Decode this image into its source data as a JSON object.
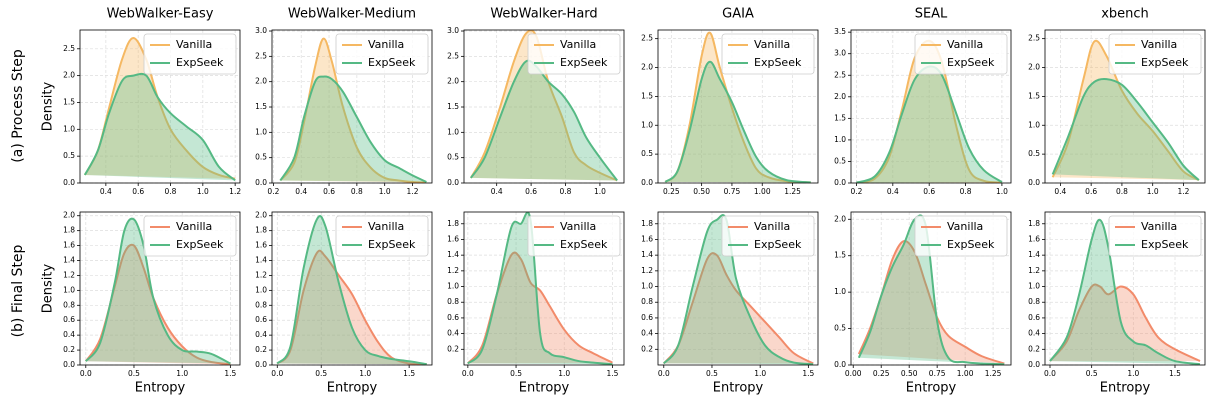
{
  "row_labels": [
    "(a) Process Step",
    "(b) Final Step"
  ],
  "chart_data": [
    {
      "type": "area",
      "title": "WebWalker-Easy",
      "ylabel": "Density",
      "x": [
        0.27,
        0.35,
        0.42,
        0.5,
        0.57,
        0.65,
        0.72,
        0.8,
        0.9,
        1.0,
        1.1,
        1.2
      ],
      "series": [
        {
          "name": "Vanilla",
          "color": "#f5b862",
          "values": [
            0.15,
            0.6,
            1.4,
            2.3,
            2.7,
            2.3,
            1.6,
            1.0,
            0.6,
            0.3,
            0.15,
            0.08
          ]
        },
        {
          "name": "ExpSeek",
          "color": "#55b984",
          "values": [
            0.15,
            0.6,
            1.3,
            1.9,
            2.0,
            2.0,
            1.6,
            1.3,
            1.05,
            0.8,
            0.3,
            0.05
          ]
        }
      ],
      "xlim": [
        0.24,
        1.23
      ],
      "ylim": [
        0,
        2.85
      ],
      "xticks": [
        0.4,
        0.6,
        0.8,
        {
          "value": 1.0,
          "label": "1.0"
        },
        1.2
      ],
      "yticks": [
        {
          "value": 0,
          "label": "0.0"
        },
        0.5,
        {
          "value": 1,
          "label": "1.0"
        },
        1.5,
        {
          "value": 2,
          "label": "2.0"
        },
        2.5
      ],
      "grid": true,
      "legend": "upper-right"
    },
    {
      "type": "area",
      "title": "WebWalker-Medium",
      "x": [
        0.25,
        0.35,
        0.42,
        0.5,
        0.56,
        0.62,
        0.7,
        0.8,
        0.9,
        1.0,
        1.1,
        1.2,
        1.3
      ],
      "series": [
        {
          "name": "Vanilla",
          "color": "#f5b862",
          "values": [
            0.05,
            0.4,
            1.2,
            2.3,
            2.85,
            2.4,
            1.5,
            0.7,
            0.3,
            0.1,
            0.05,
            0.02,
            0.01
          ]
        },
        {
          "name": "ExpSeek",
          "color": "#55b984",
          "values": [
            0.05,
            0.5,
            1.3,
            2.0,
            2.1,
            2.05,
            1.8,
            1.3,
            0.8,
            0.45,
            0.3,
            0.15,
            0.02
          ]
        }
      ],
      "xlim": [
        0.19,
        1.34
      ],
      "ylim": [
        0,
        3.02
      ],
      "xticks": [
        0.2,
        0.4,
        0.6,
        0.8,
        {
          "value": 1.0,
          "label": "1.0"
        },
        1.2
      ],
      "yticks": [
        {
          "value": 0,
          "label": "0.0"
        },
        0.5,
        {
          "value": 1,
          "label": "1.0"
        },
        1.5,
        {
          "value": 2,
          "label": "2.0"
        },
        2.5,
        {
          "value": 3,
          "label": "3.0"
        }
      ],
      "grid": true,
      "legend": "upper-right"
    },
    {
      "type": "area",
      "title": "WebWalker-Hard",
      "x": [
        0.25,
        0.33,
        0.42,
        0.5,
        0.57,
        0.63,
        0.7,
        0.78,
        0.85,
        0.92,
        1.0,
        1.1
      ],
      "series": [
        {
          "name": "Vanilla",
          "color": "#f5b862",
          "values": [
            0.1,
            0.6,
            1.5,
            2.4,
            2.95,
            2.9,
            2.0,
            1.3,
            0.6,
            0.35,
            0.2,
            0.05
          ]
        },
        {
          "name": "ExpSeek",
          "color": "#55b984",
          "values": [
            0.1,
            0.5,
            1.3,
            2.0,
            2.4,
            2.3,
            2.0,
            1.75,
            1.4,
            0.9,
            0.5,
            0.05
          ]
        }
      ],
      "xlim": [
        0.21,
        1.14
      ],
      "ylim": [
        0,
        3.02
      ],
      "xticks": [
        0.4,
        0.6,
        0.8,
        {
          "value": 1.0,
          "label": "1.0"
        }
      ],
      "yticks": [
        {
          "value": 0,
          "label": "0.0"
        },
        0.5,
        {
          "value": 1,
          "label": "1.0"
        },
        1.5,
        {
          "value": 2,
          "label": "2.0"
        },
        2.5,
        {
          "value": 3,
          "label": "3.0"
        }
      ],
      "grid": true,
      "legend": "upper-right"
    },
    {
      "type": "area",
      "title": "GAIA",
      "x": [
        0.2,
        0.3,
        0.4,
        0.5,
        0.57,
        0.65,
        0.75,
        0.85,
        0.95,
        1.05,
        1.2,
        1.4
      ],
      "series": [
        {
          "name": "Vanilla",
          "color": "#f5b862",
          "values": [
            0.02,
            0.2,
            1.0,
            2.2,
            2.6,
            2.0,
            1.3,
            0.7,
            0.25,
            0.1,
            0.03,
            0.01
          ]
        },
        {
          "name": "ExpSeek",
          "color": "#55b984",
          "values": [
            0.02,
            0.2,
            0.9,
            1.8,
            2.1,
            1.8,
            1.4,
            0.9,
            0.45,
            0.2,
            0.05,
            0.01
          ]
        }
      ],
      "xlim": [
        0.14,
        1.46
      ],
      "ylim": [
        0,
        2.65
      ],
      "xticks": [
        0.25,
        {
          "value": 0.5,
          "label": "0.50"
        },
        0.75,
        {
          "value": 1,
          "label": "1.00"
        },
        1.25
      ],
      "yticks": [
        {
          "value": 0,
          "label": "0.0"
        },
        0.5,
        {
          "value": 1,
          "label": "1.0"
        },
        1.5,
        {
          "value": 2,
          "label": "2.0"
        },
        2.5
      ],
      "grid": true,
      "legend": "upper-right"
    },
    {
      "type": "area",
      "title": "SEAL",
      "x": [
        0.2,
        0.3,
        0.38,
        0.45,
        0.52,
        0.6,
        0.67,
        0.75,
        0.82,
        0.9,
        1.0
      ],
      "series": [
        {
          "name": "Vanilla",
          "color": "#f5b862",
          "values": [
            0.01,
            0.1,
            0.6,
            1.7,
            2.9,
            3.3,
            2.8,
            1.3,
            0.3,
            0.05,
            0.01
          ]
        },
        {
          "name": "ExpSeek",
          "color": "#55b984",
          "values": [
            0.01,
            0.15,
            0.7,
            1.6,
            2.4,
            2.7,
            2.5,
            1.6,
            0.8,
            0.3,
            0.02
          ]
        }
      ],
      "xlim": [
        0.17,
        1.05
      ],
      "ylim": [
        0,
        3.55
      ],
      "xticks": [
        0.2,
        0.4,
        0.6,
        0.8,
        {
          "value": 1.0,
          "label": "1.0"
        }
      ],
      "yticks": [
        {
          "value": 0,
          "label": "0.0"
        },
        0.5,
        {
          "value": 1,
          "label": "1.0"
        },
        1.5,
        {
          "value": 2,
          "label": "2.0"
        },
        2.5,
        {
          "value": 3,
          "label": "3.0"
        },
        3.5
      ],
      "grid": true,
      "legend": "upper-right"
    },
    {
      "type": "area",
      "title": "xbench",
      "x": [
        0.35,
        0.45,
        0.55,
        0.62,
        0.7,
        0.8,
        0.9,
        1.0,
        1.1,
        1.2,
        1.3
      ],
      "series": [
        {
          "name": "Vanilla",
          "color": "#f5b862",
          "values": [
            0.1,
            0.7,
            1.8,
            2.45,
            2.2,
            1.6,
            1.2,
            0.9,
            0.55,
            0.2,
            0.05
          ]
        },
        {
          "name": "ExpSeek",
          "color": "#55b984",
          "values": [
            0.15,
            0.8,
            1.5,
            1.75,
            1.8,
            1.7,
            1.4,
            1.05,
            0.7,
            0.3,
            0.05
          ]
        }
      ],
      "xlim": [
        0.3,
        1.34
      ],
      "ylim": [
        0,
        2.65
      ],
      "xticks": [
        0.4,
        0.6,
        0.8,
        {
          "value": 1.0,
          "label": "1.0"
        },
        1.2
      ],
      "yticks": [
        {
          "value": 0,
          "label": "0.0"
        },
        0.5,
        {
          "value": 1,
          "label": "1.0"
        },
        1.5,
        {
          "value": 2,
          "label": "2.0"
        },
        2.5
      ],
      "grid": true,
      "legend": "upper-right"
    },
    {
      "type": "area",
      "ylabel": "Density",
      "xlabel": "Entropy",
      "x": [
        0,
        0.15,
        0.3,
        0.4,
        0.5,
        0.6,
        0.7,
        0.85,
        1.0,
        1.15,
        1.3,
        1.5
      ],
      "series": [
        {
          "name": "Vanilla",
          "color": "#f28b6a",
          "values": [
            0.05,
            0.35,
            1.05,
            1.5,
            1.6,
            1.3,
            0.9,
            0.5,
            0.25,
            0.1,
            0.04,
            0.01
          ]
        },
        {
          "name": "ExpSeek",
          "color": "#55b984",
          "values": [
            0.05,
            0.3,
            1.1,
            1.8,
            1.95,
            1.6,
            0.9,
            0.4,
            0.2,
            0.18,
            0.15,
            0.02
          ]
        }
      ],
      "xlim": [
        -0.06,
        1.6
      ],
      "ylim": [
        0,
        2.05
      ],
      "xticks": [
        {
          "value": 0,
          "label": "0.0"
        },
        0.5,
        {
          "value": 1,
          "label": "1.0"
        },
        1.5
      ],
      "yticks": [
        {
          "value": 0,
          "label": "0.0"
        },
        0.2,
        0.4,
        0.6,
        0.8,
        {
          "value": 1,
          "label": "1.0"
        },
        1.2,
        1.4,
        1.6,
        1.8,
        {
          "value": 2,
          "label": "2.0"
        }
      ],
      "grid": true,
      "legend": "upper-right"
    },
    {
      "type": "area",
      "xlabel": "Entropy",
      "x": [
        0,
        0.15,
        0.3,
        0.45,
        0.55,
        0.7,
        0.85,
        1.0,
        1.15,
        1.3,
        1.5,
        1.7
      ],
      "series": [
        {
          "name": "Vanilla",
          "color": "#f28b6a",
          "values": [
            0.02,
            0.2,
            1.0,
            1.5,
            1.45,
            1.2,
            0.95,
            0.6,
            0.3,
            0.1,
            0.02,
            0.01
          ]
        },
        {
          "name": "ExpSeek",
          "color": "#55b984",
          "values": [
            0.02,
            0.25,
            1.3,
            1.95,
            1.85,
            1.1,
            0.5,
            0.2,
            0.12,
            0.08,
            0.05,
            0.01
          ]
        }
      ],
      "xlim": [
        -0.06,
        1.76
      ],
      "ylim": [
        0,
        2.05
      ],
      "xticks": [
        {
          "value": 0,
          "label": "0.0"
        },
        0.5,
        {
          "value": 1,
          "label": "1.0"
        },
        1.5
      ],
      "yticks": [
        {
          "value": 0,
          "label": "0.0"
        },
        0.2,
        0.4,
        0.6,
        0.8,
        {
          "value": 1,
          "label": "1.0"
        },
        1.2,
        1.4,
        1.6,
        1.8,
        {
          "value": 2,
          "label": "2.0"
        }
      ],
      "grid": true,
      "legend": "upper-right"
    },
    {
      "type": "area",
      "xlabel": "Entropy",
      "x": [
        0,
        0.15,
        0.3,
        0.45,
        0.55,
        0.65,
        0.75,
        0.85,
        1.0,
        1.15,
        1.3,
        1.5
      ],
      "series": [
        {
          "name": "Vanilla",
          "color": "#f28b6a",
          "values": [
            0.02,
            0.25,
            0.9,
            1.4,
            1.35,
            1.05,
            0.95,
            0.75,
            0.45,
            0.25,
            0.15,
            0.03
          ]
        },
        {
          "name": "ExpSeek",
          "color": "#55b984",
          "values": [
            0.02,
            0.2,
            0.9,
            1.75,
            1.8,
            1.85,
            0.4,
            0.15,
            0.1,
            0.05,
            0.03,
            0.01
          ]
        }
      ],
      "xlim": [
        -0.04,
        1.62
      ],
      "ylim": [
        0,
        1.95
      ],
      "xticks": [
        {
          "value": 0,
          "label": "0.0"
        },
        0.5,
        {
          "value": 1,
          "label": "1.0"
        },
        1.5
      ],
      "yticks": [
        0.2,
        0.4,
        0.6,
        0.8,
        {
          "value": 1,
          "label": "1.0"
        },
        1.2,
        1.4,
        1.6,
        1.8
      ],
      "grid": true,
      "legend": "upper-right"
    },
    {
      "type": "area",
      "xlabel": "Entropy",
      "x": [
        0,
        0.15,
        0.3,
        0.45,
        0.55,
        0.65,
        0.75,
        0.9,
        1.05,
        1.2,
        1.35,
        1.55
      ],
      "series": [
        {
          "name": "Vanilla",
          "color": "#f28b6a",
          "values": [
            0.02,
            0.25,
            0.8,
            1.35,
            1.4,
            1.15,
            0.95,
            0.75,
            0.55,
            0.35,
            0.15,
            0.02
          ]
        },
        {
          "name": "ExpSeek",
          "color": "#55b984",
          "values": [
            0.02,
            0.25,
            1.0,
            1.7,
            1.85,
            1.85,
            1.1,
            0.6,
            0.25,
            0.1,
            0.03,
            0.01
          ]
        }
      ],
      "xlim": [
        -0.06,
        1.6
      ],
      "ylim": [
        0,
        1.95
      ],
      "xticks": [
        {
          "value": 0,
          "label": "0.0"
        },
        0.5,
        {
          "value": 1,
          "label": "1.0"
        },
        1.5
      ],
      "yticks": [
        0.2,
        0.4,
        0.6,
        0.8,
        {
          "value": 1,
          "label": "1.0"
        },
        1.2,
        1.4,
        1.6,
        1.8
      ],
      "grid": true,
      "legend": "upper-right"
    },
    {
      "type": "area",
      "xlabel": "Entropy",
      "x": [
        0.05,
        0.15,
        0.25,
        0.35,
        0.45,
        0.55,
        0.65,
        0.75,
        0.85,
        1.0,
        1.15,
        1.35
      ],
      "series": [
        {
          "name": "Vanilla",
          "color": "#f28b6a",
          "values": [
            0.15,
            0.5,
            0.95,
            1.45,
            1.7,
            1.55,
            1.1,
            0.65,
            0.4,
            0.25,
            0.12,
            0.02
          ]
        },
        {
          "name": "ExpSeek",
          "color": "#55b984",
          "values": [
            0.1,
            0.45,
            0.95,
            1.35,
            1.65,
            2.0,
            1.9,
            0.6,
            0.1,
            0.04,
            0.02,
            0.01
          ]
        }
      ],
      "xlim": [
        -0.02,
        1.41
      ],
      "ylim": [
        0,
        2.1
      ],
      "xticks": [
        {
          "value": 0,
          "label": "0.00"
        },
        0.25,
        {
          "value": 0.5,
          "label": "0.50"
        },
        0.75,
        {
          "value": 1,
          "label": "1.00"
        },
        1.25
      ],
      "yticks": [
        {
          "value": 0,
          "label": "0.0"
        },
        0.5,
        {
          "value": 1,
          "label": "1.0"
        },
        1.5,
        {
          "value": 2,
          "label": "2.0"
        }
      ],
      "grid": true,
      "legend": "upper-right"
    },
    {
      "type": "area",
      "xlabel": "Entropy",
      "x": [
        0,
        0.2,
        0.35,
        0.5,
        0.6,
        0.7,
        0.85,
        1.0,
        1.15,
        1.3,
        1.5,
        1.8
      ],
      "series": [
        {
          "name": "Vanilla",
          "color": "#f28b6a",
          "values": [
            0.05,
            0.3,
            0.7,
            1.0,
            1.0,
            0.9,
            1.0,
            0.9,
            0.6,
            0.35,
            0.2,
            0.05
          ]
        },
        {
          "name": "ExpSeek",
          "color": "#55b984",
          "values": [
            0.05,
            0.35,
            0.9,
            1.6,
            1.85,
            1.5,
            0.55,
            0.3,
            0.25,
            0.15,
            0.05,
            0.01
          ]
        }
      ],
      "xlim": [
        -0.06,
        1.86
      ],
      "ylim": [
        0,
        1.95
      ],
      "xticks": [
        {
          "value": 0,
          "label": "0.0"
        },
        0.5,
        {
          "value": 1,
          "label": "1.0"
        },
        1.5
      ],
      "yticks": [
        {
          "value": 0,
          "label": "0.0"
        },
        0.2,
        0.4,
        0.6,
        0.8,
        {
          "value": 1,
          "label": "1.0"
        },
        1.2,
        1.4,
        1.6,
        1.8
      ],
      "grid": true,
      "legend": "upper-right"
    }
  ]
}
